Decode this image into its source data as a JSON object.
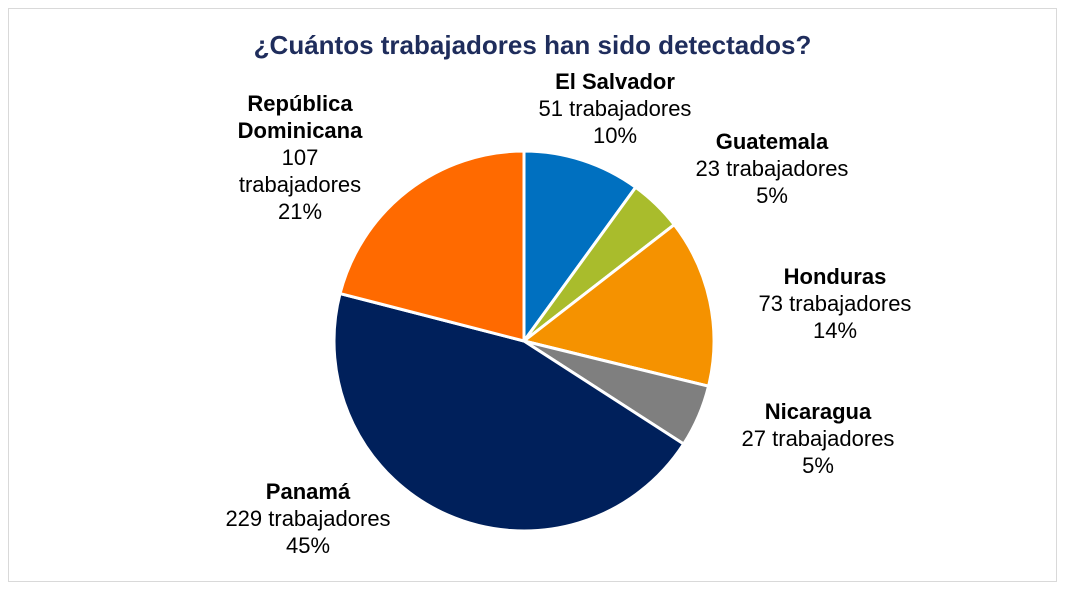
{
  "chart_data": {
    "type": "pie",
    "title": "¿Cuántos trabajadores han sido detectados?",
    "slices": [
      {
        "name": "El Salvador",
        "value": 51,
        "count_label": "51 trabajadores",
        "percent_label": "10%",
        "color": "#0070C0"
      },
      {
        "name": "Guatemala",
        "value": 23,
        "count_label": "23 trabajadores",
        "percent_label": "5%",
        "color": "#A9BC2C"
      },
      {
        "name": "Honduras",
        "value": 73,
        "count_label": "73 trabajadores",
        "percent_label": "14%",
        "color": "#F59200"
      },
      {
        "name": "Nicaragua",
        "value": 27,
        "count_label": "27 trabajadores",
        "percent_label": "5%",
        "color": "#7F7F7F"
      },
      {
        "name": "Panamá",
        "value": 229,
        "count_label": "229 trabajadores",
        "percent_label": "45%",
        "color": "#00205B"
      },
      {
        "name": "República Dominicana",
        "name_lines": [
          "República",
          "Dominicana"
        ],
        "value": 107,
        "count_lines": [
          "107",
          "trabajadores"
        ],
        "percent_label": "21%",
        "color": "#FF6A00"
      }
    ]
  }
}
